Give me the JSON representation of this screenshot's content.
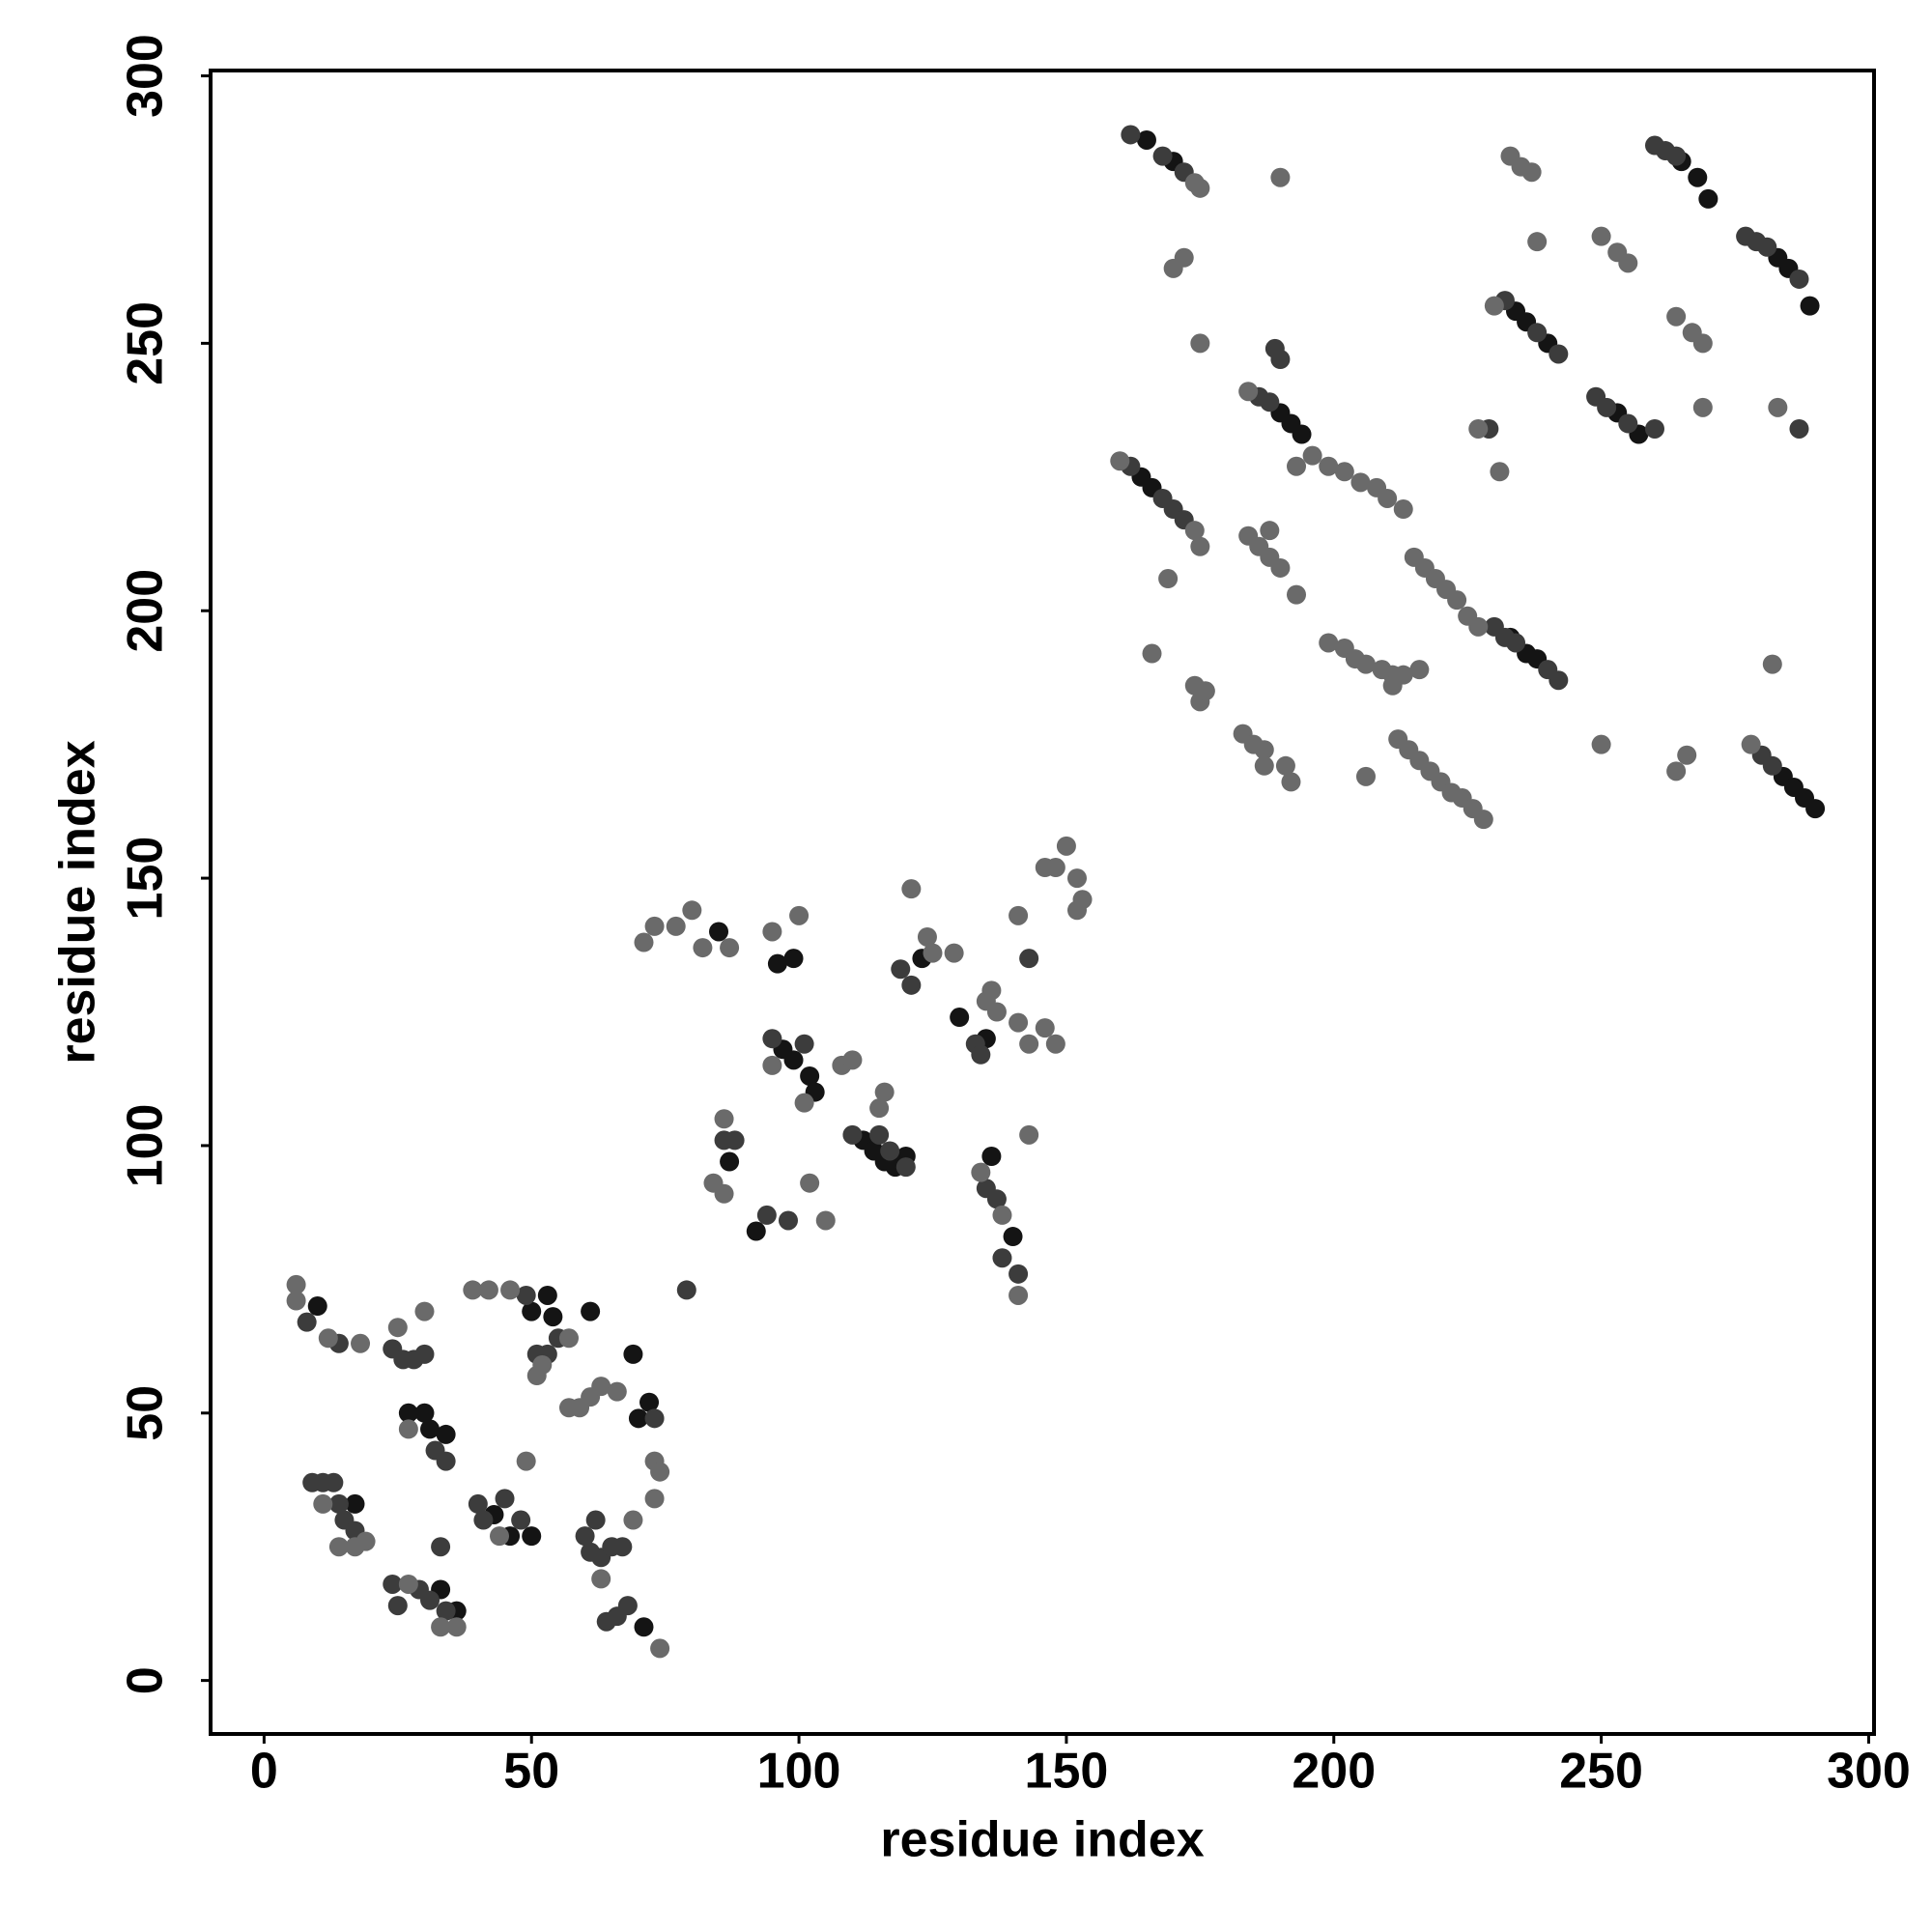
{
  "chart_data": {
    "type": "scatter",
    "x_label": "residue index",
    "y_label": "residue index",
    "xlim": [
      -10,
      301
    ],
    "ylim": [
      -10,
      301
    ],
    "xticks": [
      0,
      50,
      100,
      150,
      200,
      250,
      300
    ],
    "yticks": [
      0,
      50,
      100,
      150,
      200,
      250,
      300
    ],
    "series": [
      {
        "color": "#141414",
        "x": [
          165,
          170,
          265,
          268,
          270,
          283,
          285,
          289,
          234,
          236,
          240,
          190,
          192,
          194,
          257,
          253,
          164,
          166,
          233,
          236,
          238,
          284,
          286,
          288,
          290,
          99,
          97,
          102,
          103,
          112,
          114,
          116,
          118,
          120,
          96,
          99,
          85,
          123,
          130,
          135,
          136,
          140,
          10,
          50,
          53,
          54,
          27,
          30,
          31,
          34,
          33,
          36,
          17,
          43,
          50,
          46,
          70,
          72,
          61,
          69,
          71,
          92,
          87
        ],
        "y": [
          288,
          284,
          284,
          281,
          277,
          266,
          264,
          257,
          256,
          254,
          250,
          237,
          235,
          233,
          233,
          237,
          225,
          223,
          195,
          192,
          191,
          169,
          167,
          165,
          163,
          116,
          118,
          113,
          110,
          101,
          99,
          97,
          96,
          98,
          134,
          135,
          140,
          135,
          124,
          120,
          98,
          83,
          70,
          69,
          72,
          68,
          50,
          50,
          47,
          46,
          17,
          13,
          33,
          31,
          27,
          27,
          49,
          52,
          69,
          61,
          10,
          84,
          97
        ]
      },
      {
        "color": "#3c3c3c",
        "x": [
          162,
          168,
          172,
          260,
          262,
          264,
          277,
          279,
          281,
          287,
          232,
          238,
          242,
          186,
          188,
          189,
          190,
          249,
          251,
          255,
          260,
          287,
          229,
          162,
          168,
          170,
          172,
          230,
          232,
          234,
          240,
          242,
          280,
          282,
          95,
          101,
          110,
          115,
          117,
          120,
          86,
          88,
          94,
          98,
          121,
          119,
          133,
          134,
          135,
          143,
          137,
          138,
          141,
          8,
          14,
          24,
          26,
          28,
          30,
          32,
          34,
          40,
          49,
          51,
          55,
          53,
          9,
          11,
          13,
          14,
          15,
          17,
          24,
          25,
          29,
          31,
          34,
          41,
          45,
          48,
          60,
          61,
          62,
          63,
          65,
          67,
          64,
          66,
          68,
          73,
          79,
          33
        ],
        "y": [
          289,
          285,
          282,
          287,
          286,
          285,
          270,
          269,
          268,
          262,
          258,
          252,
          248,
          240,
          239,
          249,
          247,
          240,
          238,
          235,
          234,
          234,
          234,
          227,
          221,
          219,
          217,
          197,
          195,
          194,
          189,
          187,
          173,
          171,
          120,
          119,
          102,
          102,
          99,
          96,
          101,
          101,
          87,
          86,
          130,
          133,
          119,
          117,
          92,
          135,
          90,
          79,
          76,
          67,
          63,
          62,
          60,
          60,
          61,
          43,
          41,
          33,
          72,
          61,
          64,
          61,
          37,
          37,
          37,
          33,
          30,
          28,
          18,
          14,
          17,
          15,
          13,
          30,
          34,
          30,
          27,
          24,
          30,
          23,
          25,
          25,
          11,
          12,
          14,
          49,
          73,
          25
        ]
      },
      {
        "color": "#6a6a6a",
        "x": [
          174,
          175,
          233,
          235,
          237,
          190,
          172,
          170,
          238,
          250,
          253,
          255,
          264,
          267,
          269,
          175,
          230,
          184,
          196,
          199,
          202,
          205,
          208,
          210,
          213,
          193,
          269,
          283,
          227,
          231,
          160,
          174,
          175,
          169,
          184,
          186,
          188,
          190,
          193,
          188,
          215,
          217,
          219,
          221,
          223,
          225,
          227,
          199,
          202,
          204,
          206,
          209,
          211,
          213,
          216,
          211,
          166,
          174,
          175,
          176,
          183,
          185,
          187,
          191,
          192,
          187,
          206,
          212,
          214,
          216,
          218,
          220,
          222,
          224,
          226,
          228,
          278,
          250,
          266,
          264,
          282,
          150,
          146,
          148,
          152,
          153,
          152,
          141,
          125,
          124,
          121,
          129,
          135,
          136,
          137,
          141,
          146,
          148,
          143,
          100,
          95,
          87,
          80,
          77,
          73,
          71,
          82,
          95,
          101,
          108,
          110,
          115,
          116,
          86,
          84,
          86,
          102,
          105,
          134,
          138,
          141,
          143,
          6,
          6,
          12,
          18,
          25,
          30,
          27,
          39,
          42,
          46,
          57,
          51,
          52,
          57,
          59,
          61,
          63,
          66,
          73,
          74,
          73,
          11,
          19,
          17,
          14,
          27,
          36,
          33,
          44,
          49,
          63,
          69,
          74
        ],
        "y": [
          280,
          279,
          285,
          283,
          282,
          281,
          266,
          264,
          269,
          270,
          267,
          265,
          255,
          252,
          250,
          250,
          257,
          241,
          229,
          227,
          226,
          224,
          223,
          221,
          219,
          227,
          238,
          238,
          234,
          226,
          228,
          215,
          212,
          206,
          214,
          212,
          210,
          208,
          203,
          215,
          210,
          208,
          206,
          204,
          202,
          199,
          197,
          194,
          193,
          191,
          190,
          189,
          188,
          188,
          189,
          186,
          192,
          186,
          183,
          185,
          177,
          175,
          174,
          171,
          168,
          171,
          169,
          176,
          174,
          172,
          170,
          168,
          166,
          165,
          163,
          161,
          175,
          175,
          173,
          170,
          190,
          156,
          152,
          152,
          150,
          146,
          144,
          143,
          136,
          139,
          148,
          136,
          127,
          129,
          125,
          123,
          122,
          119,
          119,
          143,
          140,
          137,
          144,
          141,
          141,
          138,
          137,
          115,
          108,
          115,
          116,
          107,
          110,
          105,
          93,
          91,
          93,
          86,
          95,
          87,
          72,
          102,
          74,
          71,
          64,
          63,
          66,
          69,
          47,
          73,
          73,
          73,
          64,
          57,
          59,
          51,
          51,
          53,
          55,
          54,
          41,
          39,
          34,
          33,
          26,
          25,
          25,
          18,
          10,
          10,
          27,
          41,
          19,
          30,
          6
        ]
      }
    ]
  }
}
